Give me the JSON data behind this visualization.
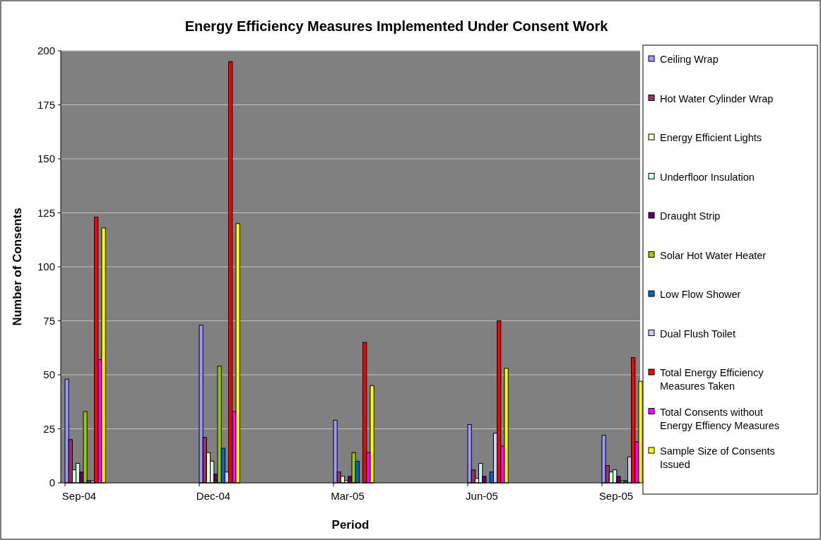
{
  "chart_data": {
    "type": "bar",
    "title": "Energy Efficiency Measures Implemented Under Consent Work",
    "xlabel": "Period",
    "ylabel": "Number of Consents",
    "categories": [
      "Sep-04",
      "Dec-04",
      "Mar-05",
      "Jun-05",
      "Sep-05"
    ],
    "series": [
      {
        "name": "Ceiling Wrap",
        "color": "#9999ff",
        "values": [
          48,
          73,
          29,
          27,
          22
        ]
      },
      {
        "name": "Hot Water Cylinder Wrap",
        "color": "#993366",
        "values": [
          20,
          21,
          5,
          6,
          8
        ]
      },
      {
        "name": "Energy Efficient Lights",
        "color": "#ffffcc",
        "values": [
          6,
          14,
          3,
          2,
          5
        ]
      },
      {
        "name": "Underfloor Insulation",
        "color": "#ccffff",
        "values": [
          9,
          10,
          1,
          9,
          6
        ]
      },
      {
        "name": "Draught Strip",
        "color": "#660066",
        "values": [
          5,
          4,
          3,
          3,
          3
        ]
      },
      {
        "name": "Solar Hot Water Heater",
        "color": "#99cc00",
        "values": [
          33,
          54,
          14,
          0,
          1
        ]
      },
      {
        "name": "Low Flow Shower",
        "color": "#0066cc",
        "values": [
          1,
          16,
          10,
          5,
          1
        ]
      },
      {
        "name": "Dual Flush Toilet",
        "color": "#ccccff",
        "values": [
          1,
          5,
          0,
          23,
          12
        ]
      },
      {
        "name": "Total Energy Efficiency Measures Taken",
        "color": "#ff0000",
        "values": [
          123,
          195,
          65,
          75,
          58
        ]
      },
      {
        "name": "Total Consents without Energy Effiency Measures",
        "color": "#ff00ff",
        "values": [
          57,
          33,
          14,
          17,
          19
        ]
      },
      {
        "name": "Sample Size of Consents Issued",
        "color": "#ffff00",
        "values": [
          118,
          120,
          45,
          53,
          47
        ]
      }
    ],
    "ylim": [
      0,
      200
    ],
    "yticks": [
      0,
      25,
      50,
      75,
      100,
      125,
      150,
      175,
      200
    ],
    "grid": "y",
    "legend": "right"
  }
}
